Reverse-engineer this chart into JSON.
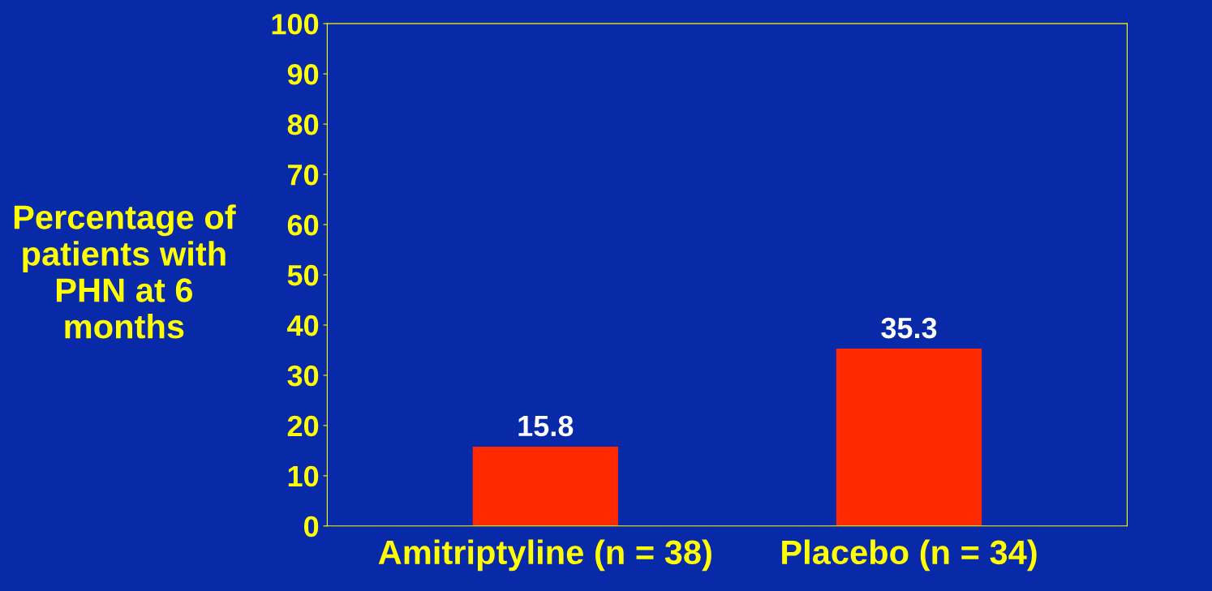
{
  "chart_data": {
    "type": "bar",
    "ylabel": "Percentage of\npatients with\nPHN at 6\nmonths",
    "categories": [
      "Amitriptyline (n = 38)",
      "Placebo (n = 34)"
    ],
    "values": [
      15.8,
      35.3
    ],
    "color": "#ff2a00",
    "ylim": [
      0,
      100
    ],
    "yticks": [
      0,
      10,
      20,
      30,
      40,
      50,
      60,
      70,
      80,
      90,
      100
    ],
    "data_labels": true,
    "grid": false,
    "legend": false
  }
}
